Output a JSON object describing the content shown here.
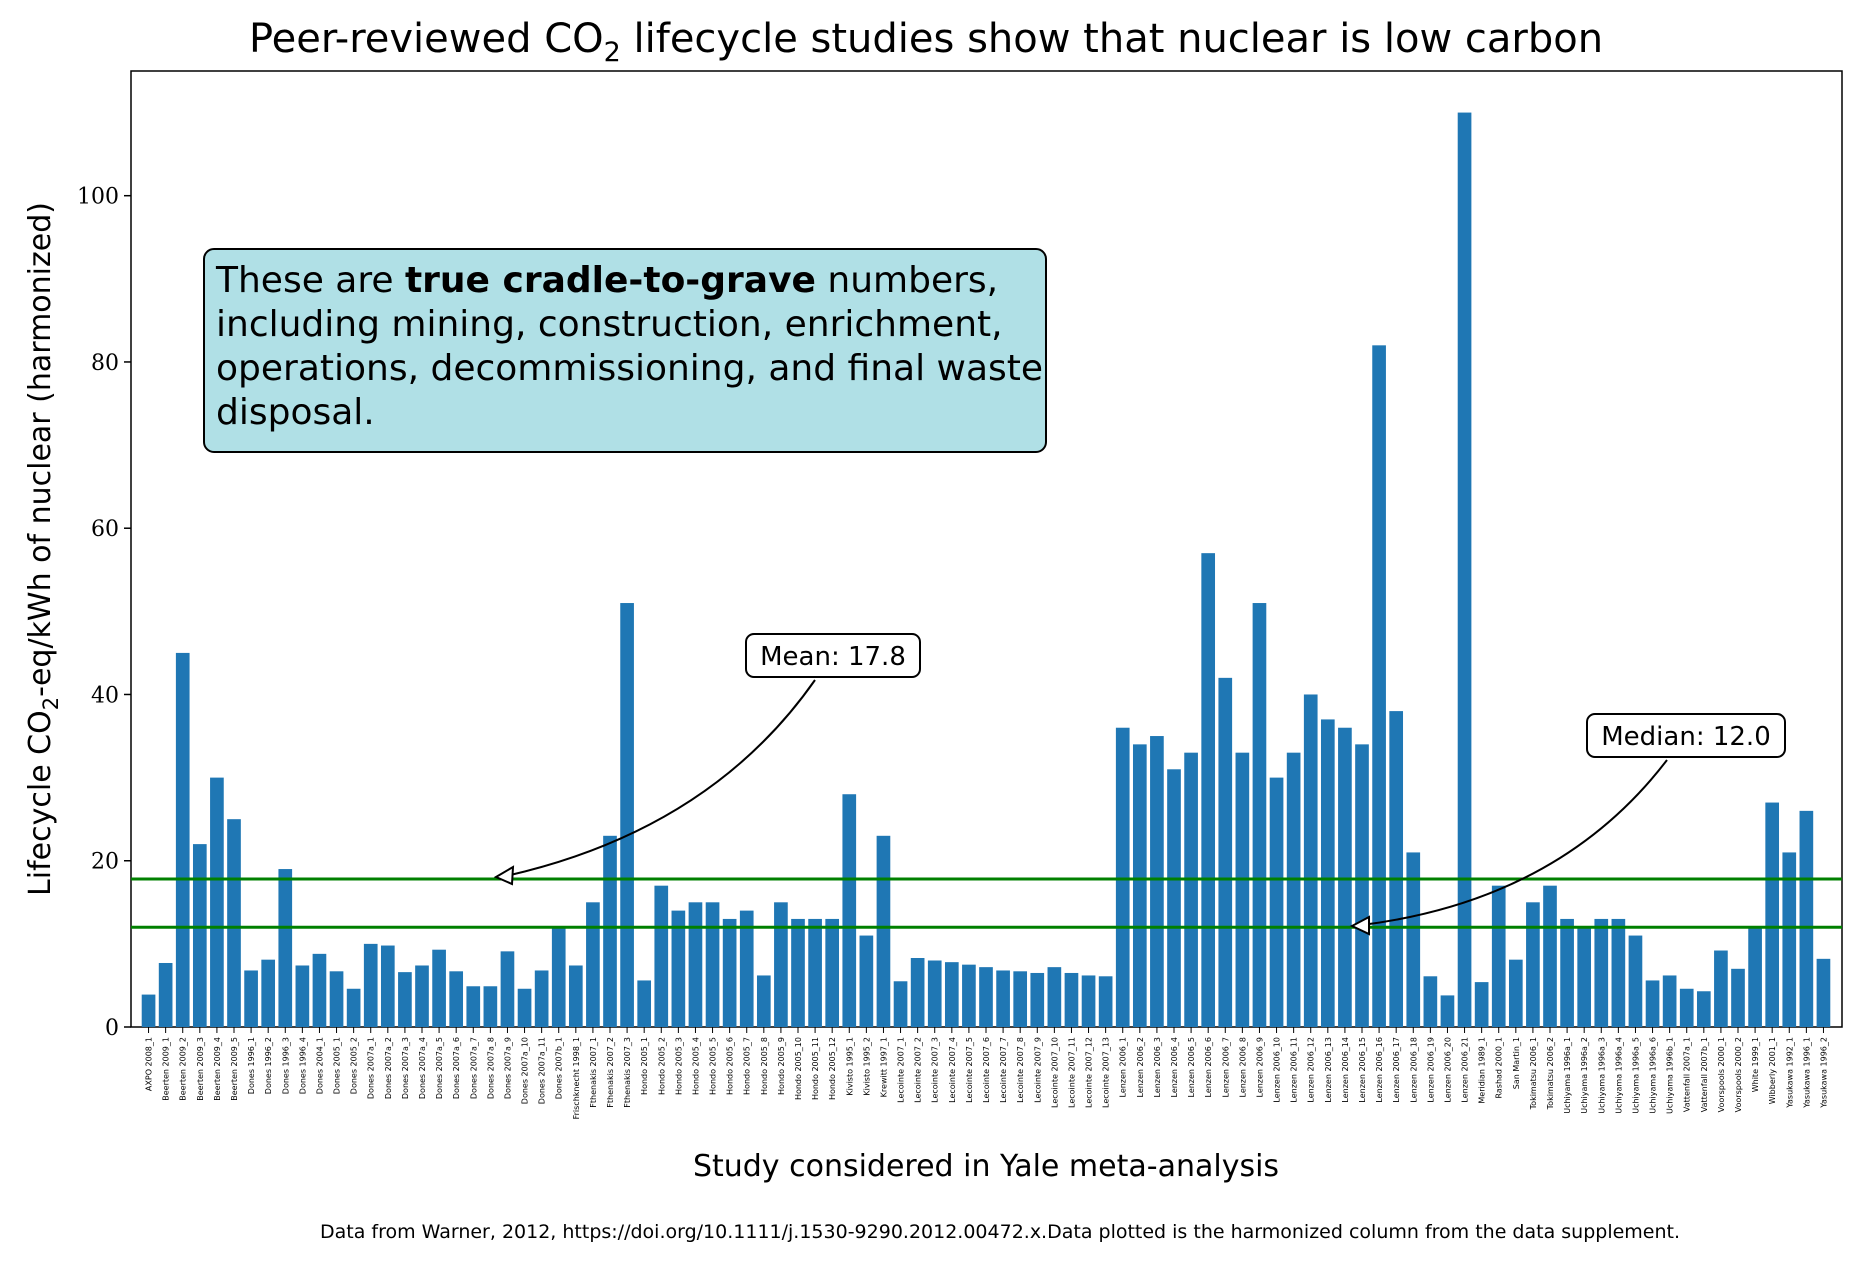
{
  "chart_data": {
    "type": "bar",
    "title_pre": "Peer-reviewed CO",
    "title_sub": "2",
    "title_post": " lifecycle studies show that nuclear is low carbon",
    "ylabel_pre": "Lifecycle CO",
    "ylabel_sub": "2",
    "ylabel_post": "-eq/kWh of nuclear (harmonized)",
    "xlabel": "Study considered in Yale meta-analysis",
    "ylim": [
      0,
      115
    ],
    "yticks": [
      0,
      20,
      40,
      60,
      80,
      100
    ],
    "bar_color": "#1f77b4",
    "line_color": "#008000",
    "note_box_color": "#b0e0e6",
    "note": {
      "line1_pre": "These are ",
      "line1_bold": "true cradle-to-grave",
      "line1_post": " numbers,",
      "line2": "including mining, construction, enrichment,",
      "line3": "operations, decommissioning, and final waste",
      "line4": "disposal."
    },
    "mean": {
      "value": 17.8,
      "label": "Mean: 17.8"
    },
    "median": {
      "value": 12.0,
      "label": "Median: 12.0"
    },
    "footnote": "Data from Warner, 2012, https://doi.org/10.1111/j.1530-9290.2012.00472.x.Data plotted is the harmonized column from the data supplement.",
    "categories": [
      "AXPO 2008_1",
      "Beerten 2009_1",
      "Beerten 2009_2",
      "Beerten 2009_3",
      "Beerten 2009_4",
      "Beerten 2009_5",
      "Dones 1996_1",
      "Dones 1996_2",
      "Dones 1996_3",
      "Dones 1996_4",
      "Dones 2004_1",
      "Dones 2005_1",
      "Dones 2005_2",
      "Dones 2007a_1",
      "Dones 2007a_2",
      "Dones 2007a_3",
      "Dones 2007a_4",
      "Dones 2007a_5",
      "Dones 2007a_6",
      "Dones 2007a_7",
      "Dones 2007a_8",
      "Dones 2007a_9",
      "Dones 2007a_10",
      "Dones 2007a_11",
      "Dones 2007b_1",
      "Frischknecht 1998_1",
      "Fthenakis 2007_1",
      "Fthenakis 2007_2",
      "Fthenakis 2007_3",
      "Hondo 2005_1",
      "Hondo 2005_2",
      "Hondo 2005_3",
      "Hondo 2005_4",
      "Hondo 2005_5",
      "Hondo 2005_6",
      "Hondo 2005_7",
      "Hondo 2005_8",
      "Hondo 2005_9",
      "Hondo 2005_10",
      "Hondo 2005_11",
      "Hondo 2005_12",
      "Kivisto 1995_1",
      "Kivisto 1995_2",
      "Krewitt 1997_1",
      "Lecointe 2007_1",
      "Lecointe 2007_2",
      "Lecointe 2007_3",
      "Lecointe 2007_4",
      "Lecointe 2007_5",
      "Lecointe 2007_6",
      "Lecointe 2007_7",
      "Lecointe 2007_8",
      "Lecointe 2007_9",
      "Lecointe 2007_10",
      "Lecointe 2007_11",
      "Lecointe 2007_12",
      "Lecointe 2007_13",
      "Lenzen 2006_1",
      "Lenzen 2006_2",
      "Lenzen 2006_3",
      "Lenzen 2006_4",
      "Lenzen 2006_5",
      "Lenzen 2006_6",
      "Lenzen 2006_7",
      "Lenzen 2006_8",
      "Lenzen 2006_9",
      "Lenzen 2006_10",
      "Lenzen 2006_11",
      "Lenzen 2006_12",
      "Lenzen 2006_13",
      "Lenzen 2006_14",
      "Lenzen 2006_15",
      "Lenzen 2006_16",
      "Lenzen 2006_17",
      "Lenzen 2006_18",
      "Lenzen 2006_19",
      "Lenzen 2006_20",
      "Lenzen 2006_21",
      "Meridian 1989_1",
      "Rashad 2000_1",
      "San Martin_1",
      "Tokimatsu 2006_1",
      "Tokimatsu 2006_2",
      "Uchiyama 1996a_1",
      "Uchiyama 1996a_2",
      "Uchiyama 1996a_3",
      "Uchiyama 1996a_4",
      "Uchiyama 1996a_5",
      "Uchiyama 1996a_6",
      "Uchiyama 1996b_1",
      "Vattenfall 2007a_1",
      "Vattenfall 2007b_1",
      "Voorspools 2000_1",
      "Voorspools 2000_2",
      "White 1999_1",
      "Wibberly 2001_1",
      "Yasukawa 1992_1",
      "Yasukawa 1996_1",
      "Yasukawa 1996_2"
    ],
    "values": [
      3.9,
      7.7,
      45,
      22,
      30,
      25,
      6.8,
      8.1,
      19,
      7.4,
      8.8,
      6.7,
      4.6,
      10,
      9.8,
      6.6,
      7.4,
      9.3,
      6.7,
      4.9,
      4.9,
      9.1,
      4.6,
      6.8,
      12,
      7.4,
      15,
      23,
      51,
      5.6,
      17,
      14,
      15,
      15,
      13,
      14,
      6.2,
      15,
      13,
      13,
      13,
      28,
      11,
      23,
      5.5,
      8.3,
      8,
      7.8,
      7.5,
      7.2,
      6.8,
      6.7,
      6.5,
      7.2,
      6.5,
      6.2,
      6.1,
      36,
      34,
      35,
      31,
      33,
      57,
      42,
      33,
      51,
      30,
      33,
      40,
      37,
      36,
      34,
      82,
      38,
      21,
      6.1,
      3.8,
      110,
      5.4,
      17,
      8.1,
      15,
      17,
      13,
      12,
      13,
      13,
      11,
      5.6,
      6.2,
      4.6,
      4.3,
      9.2,
      7,
      12,
      27,
      21,
      26,
      8.2
    ]
  }
}
